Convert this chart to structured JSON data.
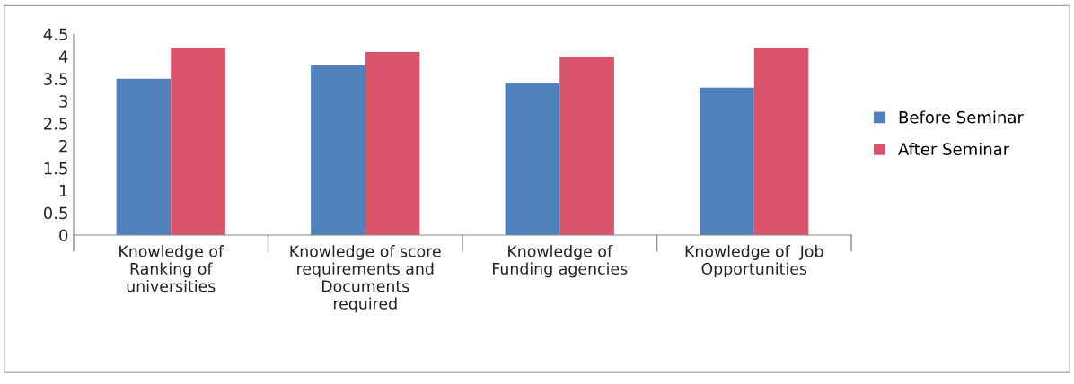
{
  "chart_data": {
    "type": "bar",
    "categories": [
      "Knowledge of\nRanking of\nuniversities",
      "Knowledge of score\nrequirements and\nDocuments\nrequired",
      "Knowledge of\nFunding agencies",
      "Knowledge of  Job\nOpportunities"
    ],
    "series": [
      {
        "name": "Before Seminar",
        "color": "#4f81bd",
        "values": [
          3.5,
          3.8,
          3.4,
          3.3
        ]
      },
      {
        "name": "After Seminar",
        "color": "#d9546b",
        "values": [
          4.2,
          4.1,
          4.0,
          4.2
        ]
      }
    ],
    "ylim": [
      0,
      4.5
    ],
    "yticks": [
      0,
      0.5,
      1,
      1.5,
      2,
      2.5,
      3,
      3.5,
      4,
      4.5
    ],
    "grid": false,
    "legend": "right"
  }
}
